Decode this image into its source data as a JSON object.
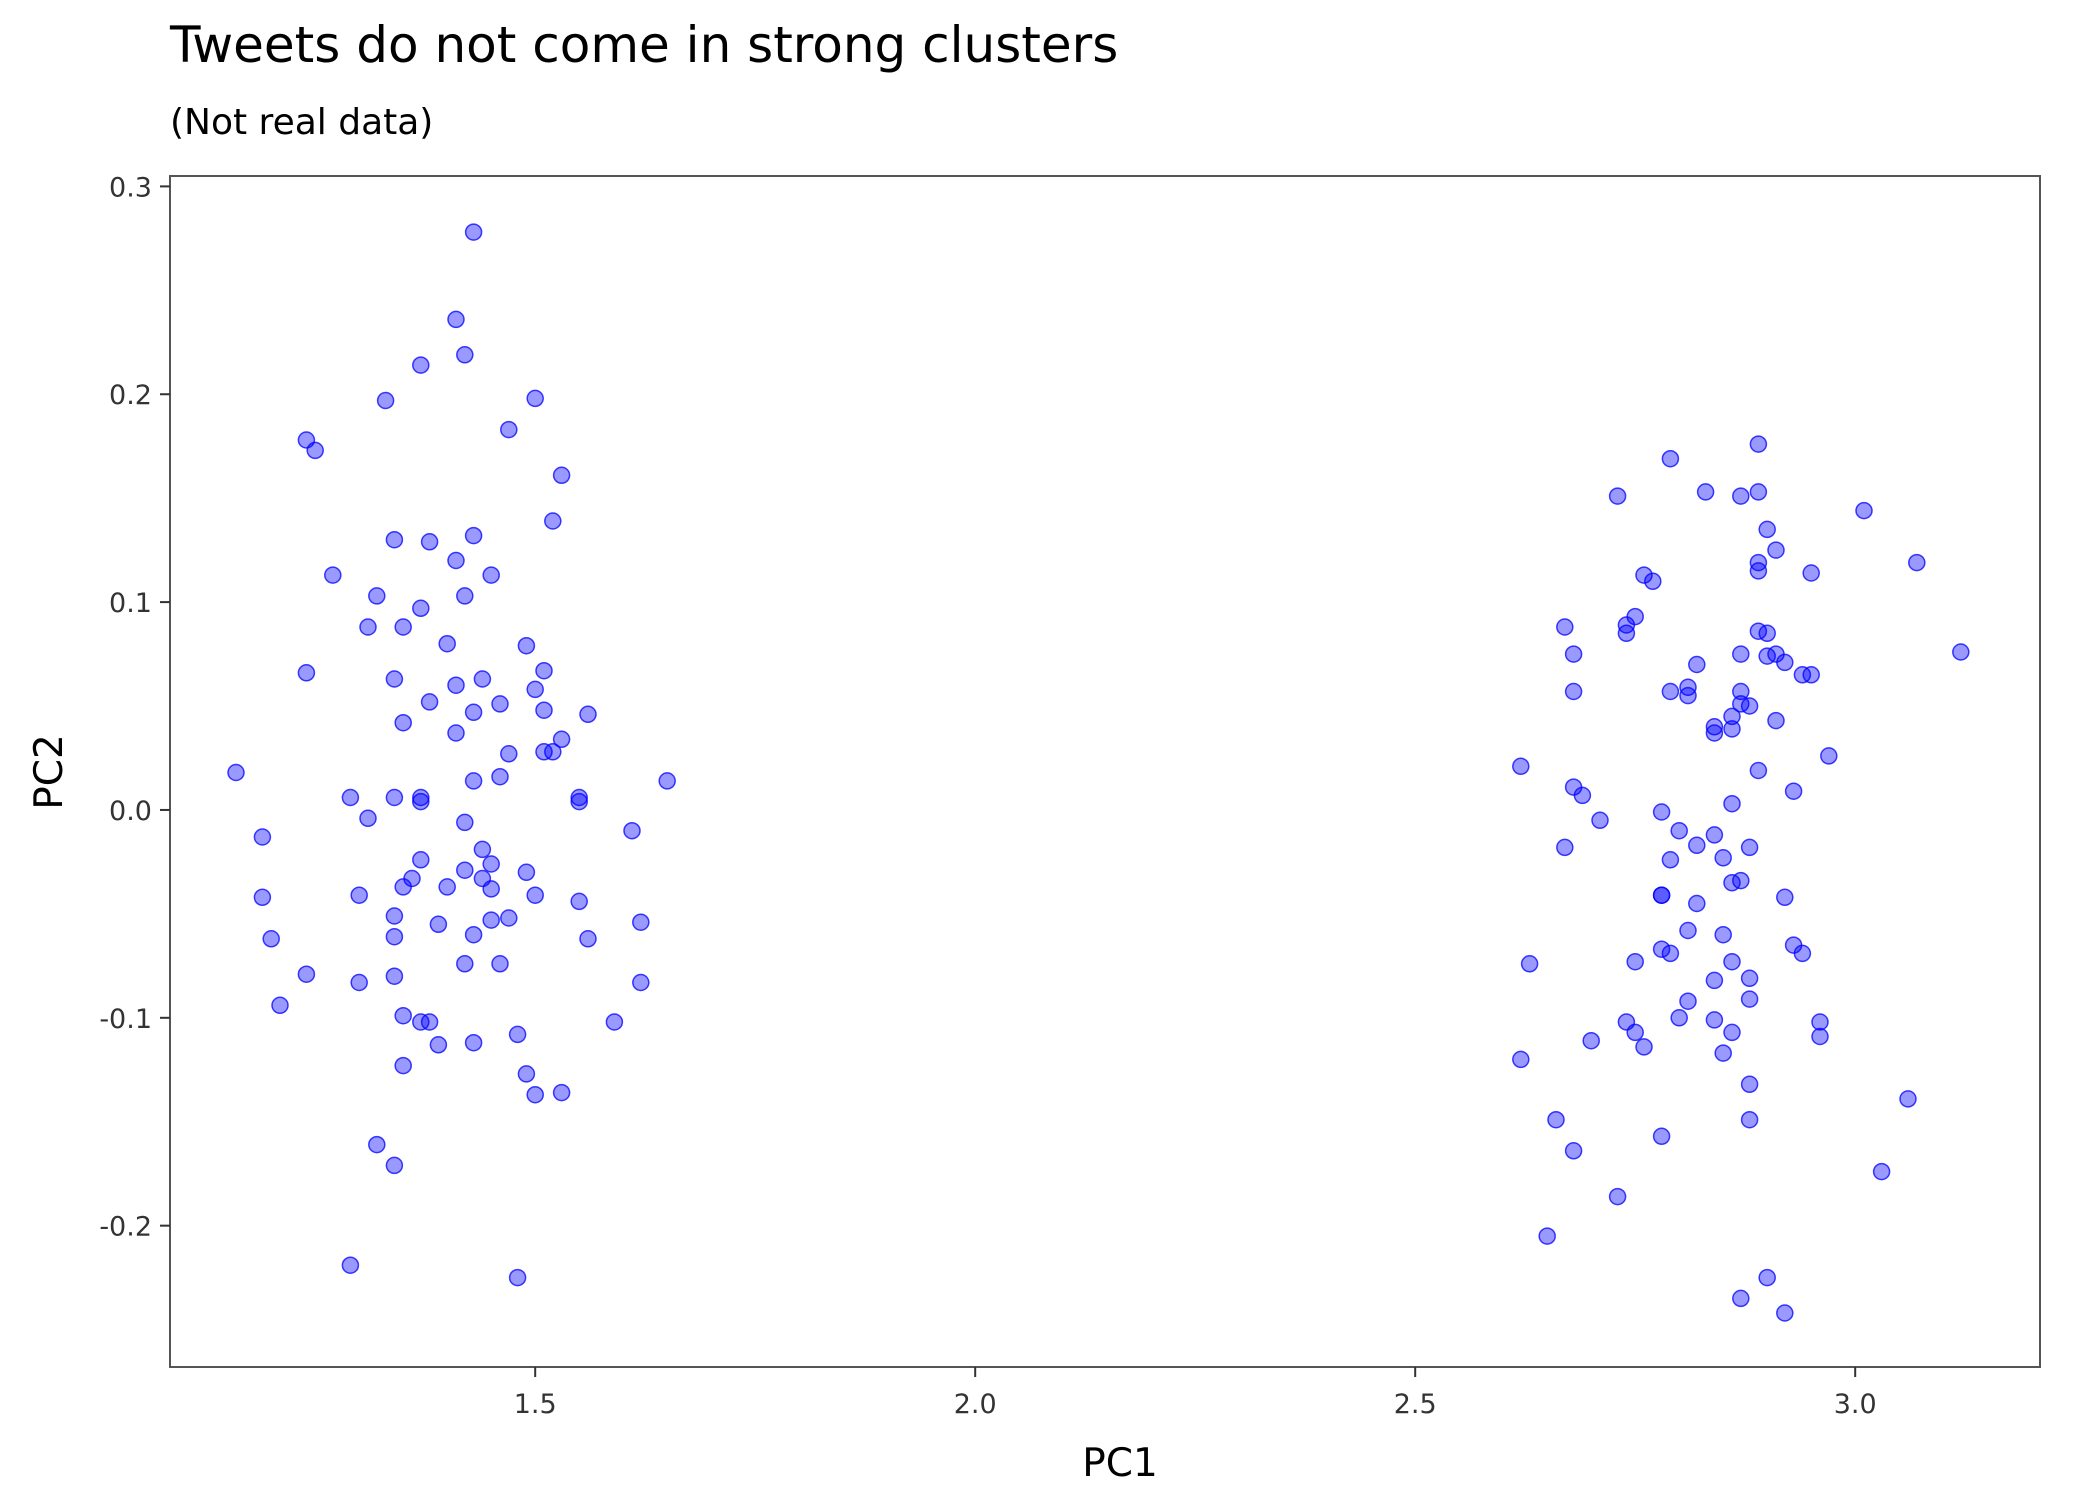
{
  "chart_data": {
    "type": "scatter",
    "title": "Tweets do not come in strong clusters",
    "subtitle": "(Not real data)",
    "xlabel": "PC1",
    "ylabel": "PC2",
    "xlim": [
      1.085,
      3.21
    ],
    "ylim": [
      -0.268,
      0.305
    ],
    "x_ticks": [
      1.5,
      2.0,
      2.5,
      3.0
    ],
    "x_tick_labels": [
      "1.5",
      "2.0",
      "2.5",
      "3.0"
    ],
    "y_ticks": [
      -0.2,
      -0.1,
      0.0,
      0.1,
      0.2,
      0.3
    ],
    "y_tick_labels": [
      "-0.2",
      "-0.1",
      "0.0",
      "0.1",
      "0.2",
      "0.3"
    ],
    "grid": false,
    "legend": "none",
    "point_color": "#0000ff",
    "point_opacity": 0.4,
    "panel_border_color": "#555555",
    "series": [
      {
        "points": [
          [
            1.43,
            0.278
          ],
          [
            1.41,
            0.236
          ],
          [
            1.42,
            0.219
          ],
          [
            1.37,
            0.214
          ],
          [
            1.33,
            0.197
          ],
          [
            1.5,
            0.198
          ],
          [
            1.47,
            0.183
          ],
          [
            1.24,
            0.178
          ],
          [
            1.25,
            0.173
          ],
          [
            1.53,
            0.161
          ],
          [
            1.52,
            0.139
          ],
          [
            1.43,
            0.132
          ],
          [
            1.34,
            0.13
          ],
          [
            1.38,
            0.129
          ],
          [
            1.41,
            0.12
          ],
          [
            1.27,
            0.113
          ],
          [
            1.45,
            0.113
          ],
          [
            1.42,
            0.103
          ],
          [
            1.32,
            0.103
          ],
          [
            1.37,
            0.097
          ],
          [
            1.31,
            0.088
          ],
          [
            1.35,
            0.088
          ],
          [
            1.4,
            0.08
          ],
          [
            1.49,
            0.079
          ],
          [
            1.24,
            0.066
          ],
          [
            1.51,
            0.067
          ],
          [
            1.34,
            0.063
          ],
          [
            1.44,
            0.063
          ],
          [
            1.41,
            0.06
          ],
          [
            1.5,
            0.058
          ],
          [
            1.38,
            0.052
          ],
          [
            1.46,
            0.051
          ],
          [
            1.43,
            0.047
          ],
          [
            1.51,
            0.048
          ],
          [
            1.56,
            0.046
          ],
          [
            1.35,
            0.042
          ],
          [
            1.41,
            0.037
          ],
          [
            1.53,
            0.034
          ],
          [
            1.51,
            0.028
          ],
          [
            1.52,
            0.028
          ],
          [
            1.47,
            0.027
          ],
          [
            1.16,
            0.018
          ],
          [
            1.46,
            0.016
          ],
          [
            1.43,
            0.014
          ],
          [
            1.65,
            0.014
          ],
          [
            1.29,
            0.006
          ],
          [
            1.34,
            0.006
          ],
          [
            1.37,
            0.006
          ],
          [
            1.37,
            0.004
          ],
          [
            1.55,
            0.006
          ],
          [
            1.55,
            0.004
          ],
          [
            1.31,
            -0.004
          ],
          [
            1.42,
            -0.006
          ],
          [
            1.61,
            -0.01
          ],
          [
            1.19,
            -0.013
          ],
          [
            1.44,
            -0.019
          ],
          [
            1.37,
            -0.024
          ],
          [
            1.45,
            -0.026
          ],
          [
            1.42,
            -0.029
          ],
          [
            1.49,
            -0.03
          ],
          [
            1.36,
            -0.033
          ],
          [
            1.44,
            -0.033
          ],
          [
            1.35,
            -0.037
          ],
          [
            1.4,
            -0.037
          ],
          [
            1.45,
            -0.038
          ],
          [
            1.3,
            -0.041
          ],
          [
            1.5,
            -0.041
          ],
          [
            1.19,
            -0.042
          ],
          [
            1.55,
            -0.044
          ],
          [
            1.34,
            -0.051
          ],
          [
            1.47,
            -0.052
          ],
          [
            1.45,
            -0.053
          ],
          [
            1.62,
            -0.054
          ],
          [
            1.39,
            -0.055
          ],
          [
            1.43,
            -0.06
          ],
          [
            1.34,
            -0.061
          ],
          [
            1.2,
            -0.062
          ],
          [
            1.56,
            -0.062
          ],
          [
            1.42,
            -0.074
          ],
          [
            1.46,
            -0.074
          ],
          [
            1.24,
            -0.079
          ],
          [
            1.34,
            -0.08
          ],
          [
            1.3,
            -0.083
          ],
          [
            1.62,
            -0.083
          ],
          [
            1.21,
            -0.094
          ],
          [
            1.35,
            -0.099
          ],
          [
            1.37,
            -0.102
          ],
          [
            1.38,
            -0.102
          ],
          [
            1.59,
            -0.102
          ],
          [
            1.48,
            -0.108
          ],
          [
            1.39,
            -0.113
          ],
          [
            1.43,
            -0.112
          ],
          [
            1.35,
            -0.123
          ],
          [
            1.49,
            -0.127
          ],
          [
            1.5,
            -0.137
          ],
          [
            1.53,
            -0.136
          ],
          [
            1.32,
            -0.161
          ],
          [
            1.34,
            -0.171
          ],
          [
            1.29,
            -0.219
          ],
          [
            1.48,
            -0.225
          ]
        ]
      },
      {
        "points": [
          [
            2.89,
            0.176
          ],
          [
            2.79,
            0.169
          ],
          [
            2.89,
            0.153
          ],
          [
            2.83,
            0.153
          ],
          [
            2.87,
            0.151
          ],
          [
            2.73,
            0.151
          ],
          [
            3.01,
            0.144
          ],
          [
            2.9,
            0.135
          ],
          [
            2.91,
            0.125
          ],
          [
            2.89,
            0.119
          ],
          [
            3.07,
            0.119
          ],
          [
            2.89,
            0.115
          ],
          [
            2.95,
            0.114
          ],
          [
            2.76,
            0.113
          ],
          [
            2.77,
            0.11
          ],
          [
            2.75,
            0.093
          ],
          [
            2.74,
            0.089
          ],
          [
            2.67,
            0.088
          ],
          [
            2.89,
            0.086
          ],
          [
            2.9,
            0.085
          ],
          [
            2.74,
            0.085
          ],
          [
            2.68,
            0.075
          ],
          [
            2.87,
            0.075
          ],
          [
            2.91,
            0.075
          ],
          [
            2.9,
            0.074
          ],
          [
            3.12,
            0.076
          ],
          [
            2.92,
            0.071
          ],
          [
            2.82,
            0.07
          ],
          [
            2.94,
            0.065
          ],
          [
            2.95,
            0.065
          ],
          [
            2.81,
            0.059
          ],
          [
            2.87,
            0.057
          ],
          [
            2.79,
            0.057
          ],
          [
            2.68,
            0.057
          ],
          [
            2.81,
            0.055
          ],
          [
            2.87,
            0.051
          ],
          [
            2.88,
            0.05
          ],
          [
            2.86,
            0.045
          ],
          [
            2.91,
            0.043
          ],
          [
            2.84,
            0.04
          ],
          [
            2.86,
            0.039
          ],
          [
            2.84,
            0.037
          ],
          [
            2.97,
            0.026
          ],
          [
            2.62,
            0.021
          ],
          [
            2.89,
            0.019
          ],
          [
            2.68,
            0.011
          ],
          [
            2.93,
            0.009
          ],
          [
            2.69,
            0.007
          ],
          [
            2.86,
            0.003
          ],
          [
            2.78,
            -0.001
          ],
          [
            2.71,
            -0.005
          ],
          [
            2.8,
            -0.01
          ],
          [
            2.84,
            -0.012
          ],
          [
            2.82,
            -0.017
          ],
          [
            2.67,
            -0.018
          ],
          [
            2.88,
            -0.018
          ],
          [
            2.85,
            -0.023
          ],
          [
            2.79,
            -0.024
          ],
          [
            2.87,
            -0.034
          ],
          [
            2.86,
            -0.035
          ],
          [
            2.92,
            -0.042
          ],
          [
            2.78,
            -0.041
          ],
          [
            2.78,
            -0.041
          ],
          [
            2.82,
            -0.045
          ],
          [
            2.81,
            -0.058
          ],
          [
            2.85,
            -0.06
          ],
          [
            2.93,
            -0.065
          ],
          [
            2.78,
            -0.067
          ],
          [
            2.79,
            -0.069
          ],
          [
            2.94,
            -0.069
          ],
          [
            2.63,
            -0.074
          ],
          [
            2.75,
            -0.073
          ],
          [
            2.86,
            -0.073
          ],
          [
            2.84,
            -0.082
          ],
          [
            2.88,
            -0.081
          ],
          [
            2.81,
            -0.092
          ],
          [
            2.88,
            -0.091
          ],
          [
            2.8,
            -0.1
          ],
          [
            2.84,
            -0.101
          ],
          [
            2.74,
            -0.102
          ],
          [
            2.96,
            -0.102
          ],
          [
            2.75,
            -0.107
          ],
          [
            2.86,
            -0.107
          ],
          [
            2.96,
            -0.109
          ],
          [
            2.7,
            -0.111
          ],
          [
            2.76,
            -0.114
          ],
          [
            2.85,
            -0.117
          ],
          [
            2.62,
            -0.12
          ],
          [
            2.88,
            -0.132
          ],
          [
            3.06,
            -0.139
          ],
          [
            2.66,
            -0.149
          ],
          [
            2.88,
            -0.149
          ],
          [
            2.78,
            -0.157
          ],
          [
            2.68,
            -0.164
          ],
          [
            3.03,
            -0.174
          ],
          [
            2.73,
            -0.186
          ],
          [
            2.65,
            -0.205
          ],
          [
            2.9,
            -0.225
          ],
          [
            2.87,
            -0.235
          ],
          [
            2.92,
            -0.242
          ]
        ]
      }
    ]
  }
}
